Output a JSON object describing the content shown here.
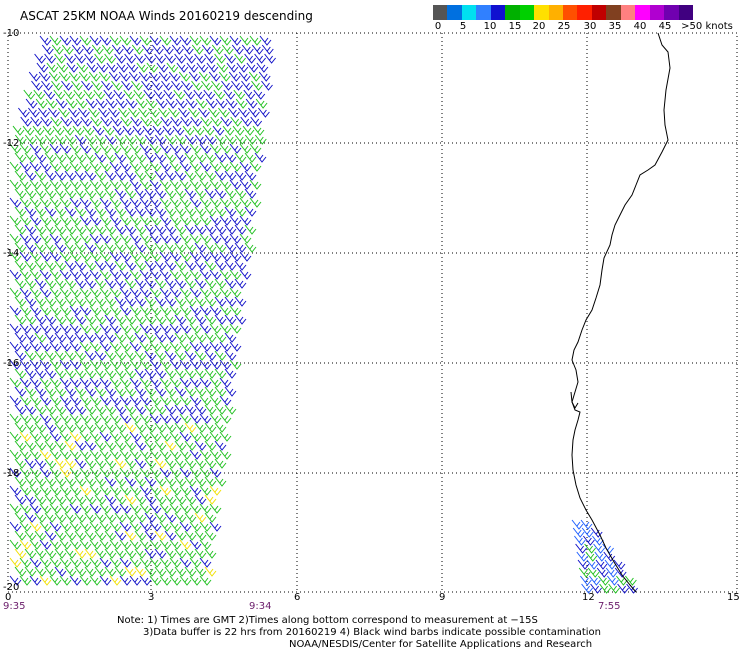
{
  "title": "ASCAT 25KM NOAA Winds 20160219 descending",
  "legend": {
    "colors": [
      "#555555",
      "#0070e0",
      "#00e0f0",
      "#3080ff",
      "#1010d0",
      "#00b000",
      "#00d000",
      "#ffe000",
      "#ffb000",
      "#ff5000",
      "#ff2000",
      "#c00000",
      "#804020",
      "#ff8080",
      "#ff00ff",
      "#b000d0",
      "#7000b0",
      "#400080"
    ],
    "labels": [
      "0",
      "5",
      "10",
      "15",
      "20",
      "25",
      "30",
      "35",
      "40",
      "45",
      ">50 knots"
    ]
  },
  "axes": {
    "lat_labels": [
      "-10",
      "-12",
      "-14",
      "-16",
      "-18",
      "-20"
    ],
    "lon_labels": [
      "0",
      "3",
      "6",
      "9",
      "12",
      "15"
    ]
  },
  "times": [
    "9:35",
    "9:34",
    "7:55"
  ],
  "notes": [
    "Note: 1) Times are GMT 2)Times along bottom correspond to measurement at −15S",
    "3)Data buffer is 22 hrs from 20160219 4) Black wind barbs indicate possible contamination",
    "NOAA/NESDIS/Center for Satellite Applications and Research"
  ],
  "barb_colors": {
    "blue": "#1010c8",
    "green": "#20c020",
    "yellow": "#f0e000",
    "cyan_blue": "#2060ff"
  }
}
